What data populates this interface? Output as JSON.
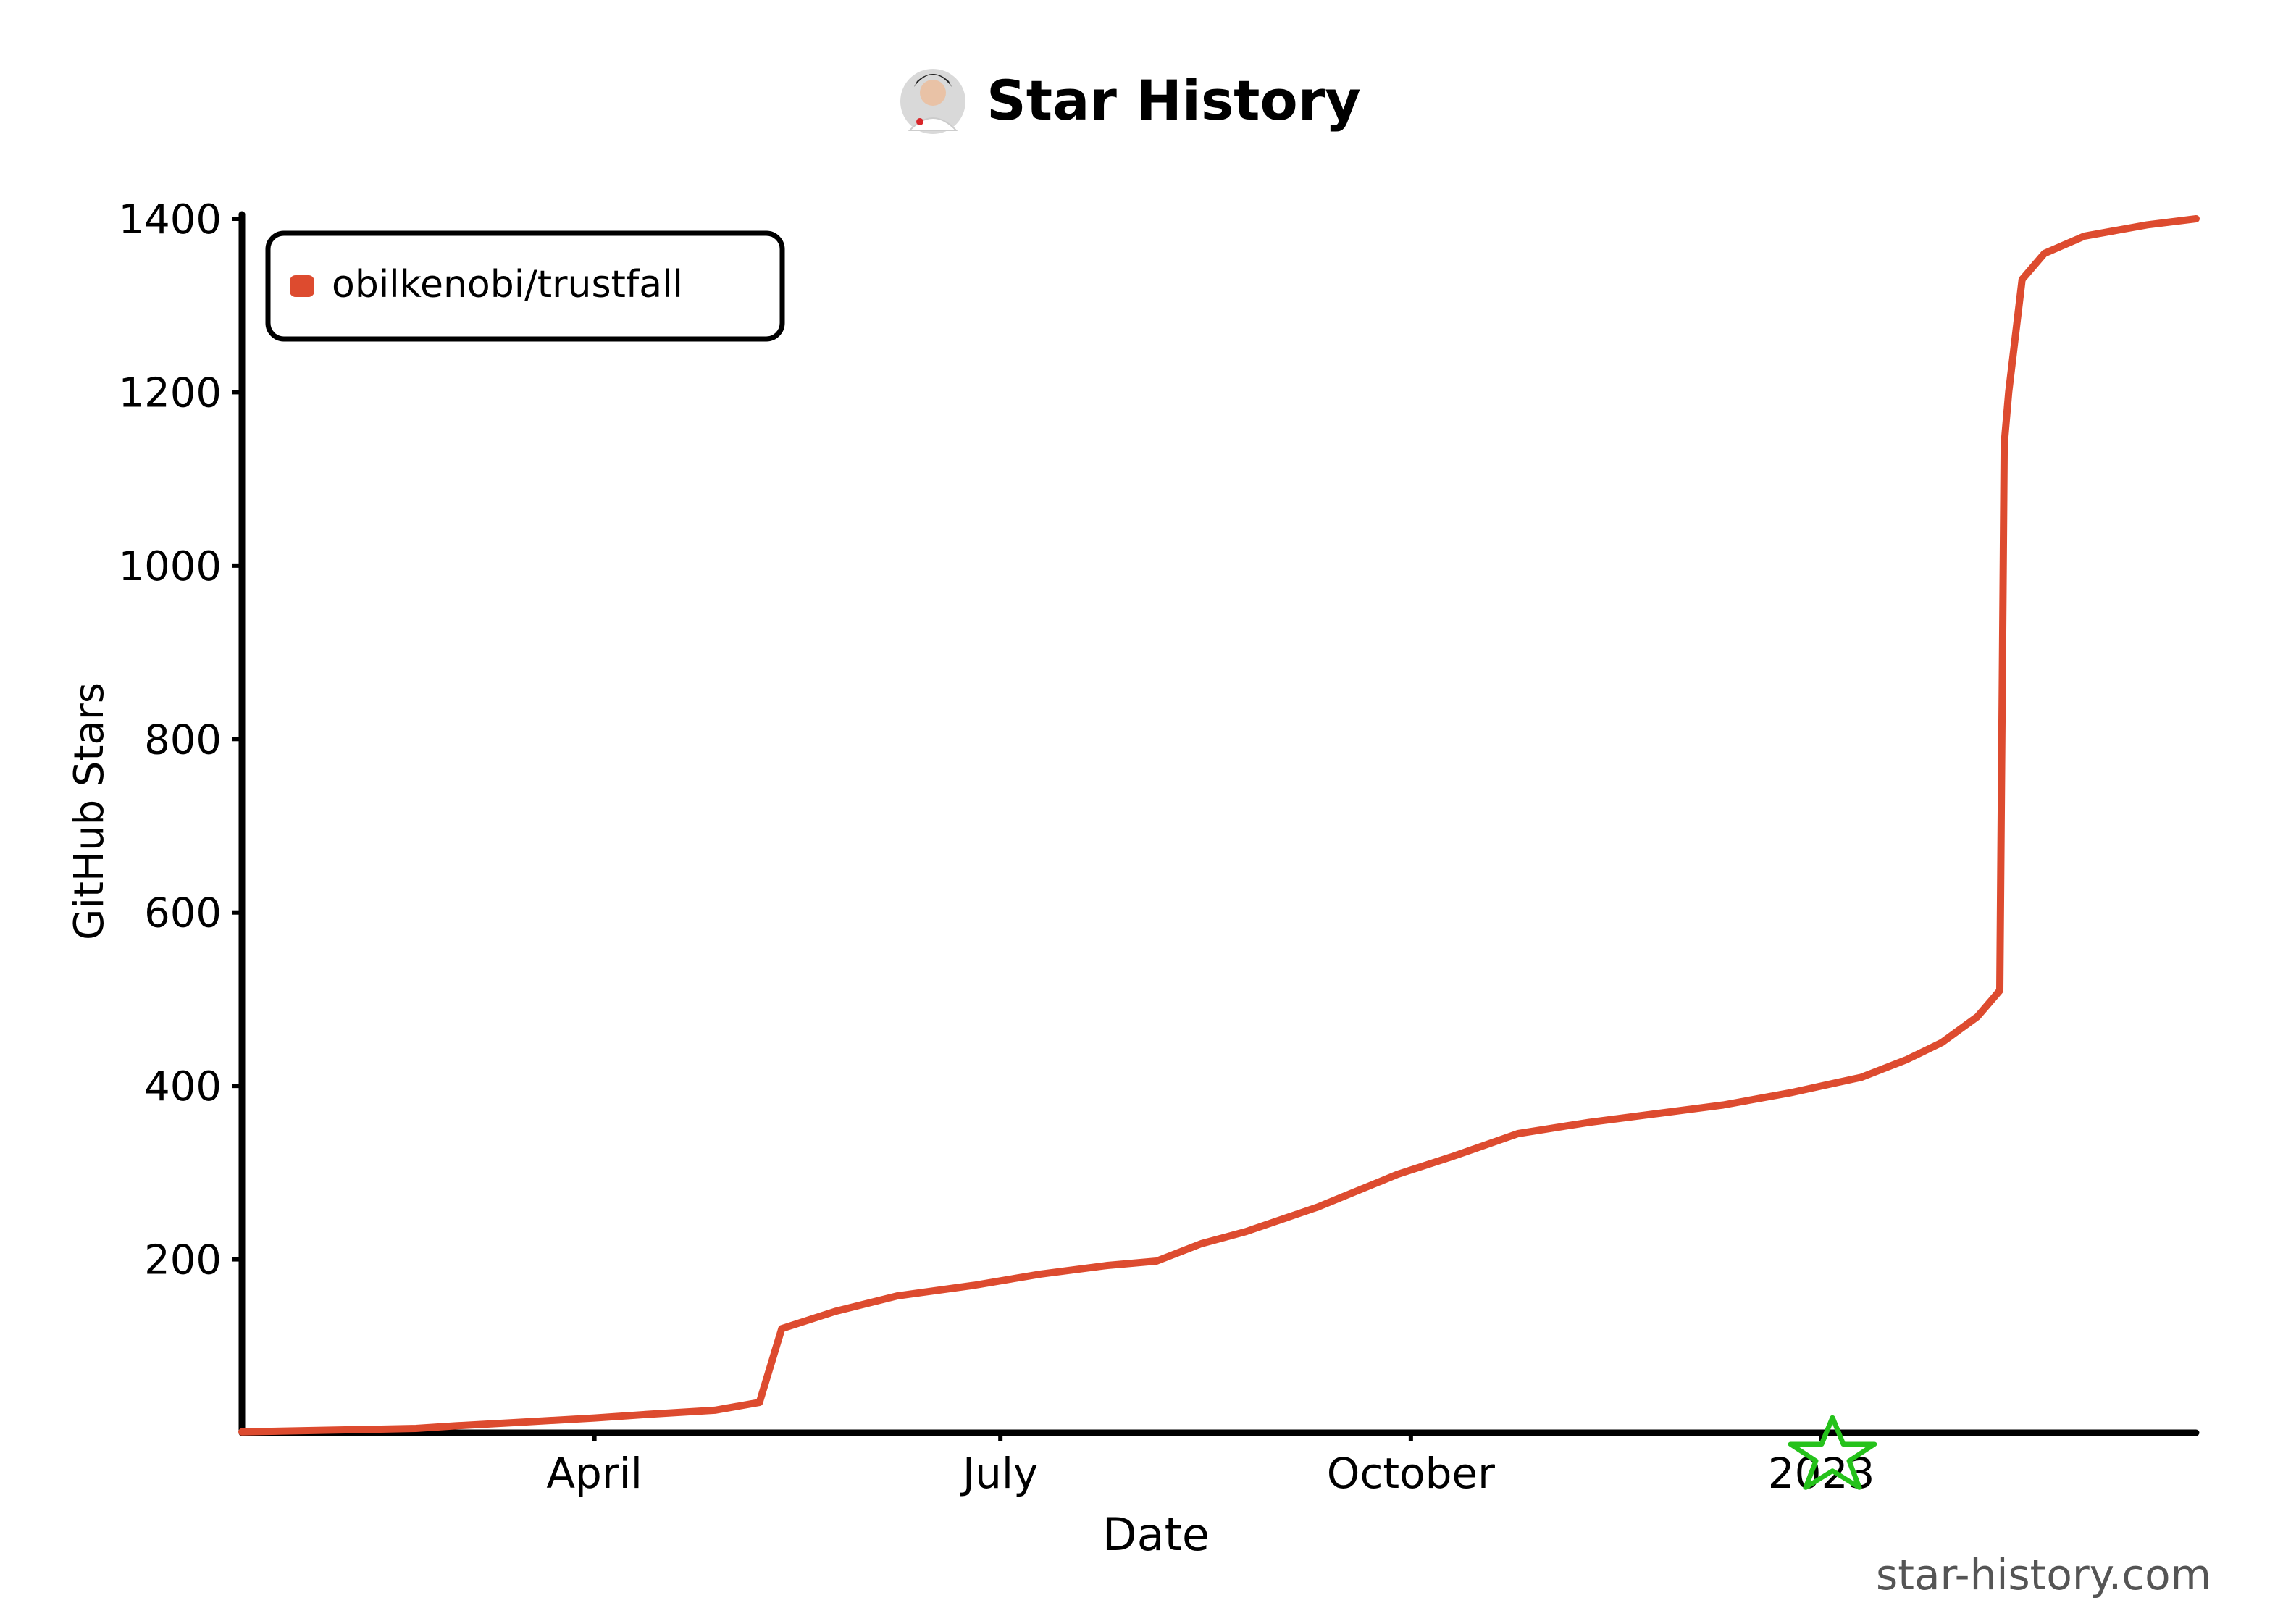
{
  "colors": {
    "background": "#ffffff",
    "axis": "#000000",
    "series": "#dd4b2f",
    "watermark_icon": "#25c21b",
    "watermark_text": "#555555"
  },
  "icons": {
    "title_avatar": "avatar-icon",
    "watermark": "star-icon"
  },
  "watermark": "star-history.com",
  "chart_data": {
    "type": "line",
    "title": "Star History",
    "xlabel": "Date",
    "ylabel": "GitHub Stars",
    "x_ticks": [
      "April",
      "July",
      "October",
      "2023"
    ],
    "x_tick_dates": [
      "2022-04-01",
      "2022-07-01",
      "2022-10-01",
      "2023-01-01"
    ],
    "y_ticks": [
      200,
      400,
      600,
      800,
      1000,
      1200,
      1400
    ],
    "xlim": [
      "2022-01-12",
      "2023-03-26"
    ],
    "ylim": [
      0,
      1400
    ],
    "grid": false,
    "legend_position": "top-left",
    "series": [
      {
        "name": "obilkenobi/trustfall",
        "points": [
          [
            "2022-01-12",
            1
          ],
          [
            "2022-02-01",
            3
          ],
          [
            "2022-02-20",
            5
          ],
          [
            "2022-03-01",
            8
          ],
          [
            "2022-03-15",
            12
          ],
          [
            "2022-04-01",
            17
          ],
          [
            "2022-04-15",
            22
          ],
          [
            "2022-04-28",
            26
          ],
          [
            "2022-05-08",
            35
          ],
          [
            "2022-05-13",
            120
          ],
          [
            "2022-05-25",
            140
          ],
          [
            "2022-06-08",
            158
          ],
          [
            "2022-06-25",
            170
          ],
          [
            "2022-07-10",
            183
          ],
          [
            "2022-07-25",
            193
          ],
          [
            "2022-08-05",
            198
          ],
          [
            "2022-08-15",
            218
          ],
          [
            "2022-08-25",
            232
          ],
          [
            "2022-09-10",
            260
          ],
          [
            "2022-09-28",
            298
          ],
          [
            "2022-10-10",
            318
          ],
          [
            "2022-10-25",
            345
          ],
          [
            "2022-11-10",
            358
          ],
          [
            "2022-11-25",
            368
          ],
          [
            "2022-12-10",
            378
          ],
          [
            "2022-12-25",
            392
          ],
          [
            "2023-01-10",
            410
          ],
          [
            "2023-01-20",
            430
          ],
          [
            "2023-01-28",
            450
          ],
          [
            "2023-02-05",
            480
          ],
          [
            "2023-02-10",
            510
          ],
          [
            "2023-02-11",
            1140
          ],
          [
            "2023-02-12",
            1200
          ],
          [
            "2023-02-15",
            1330
          ],
          [
            "2023-02-20",
            1360
          ],
          [
            "2023-03-01",
            1380
          ],
          [
            "2023-03-15",
            1393
          ],
          [
            "2023-03-26",
            1400
          ]
        ]
      }
    ]
  }
}
